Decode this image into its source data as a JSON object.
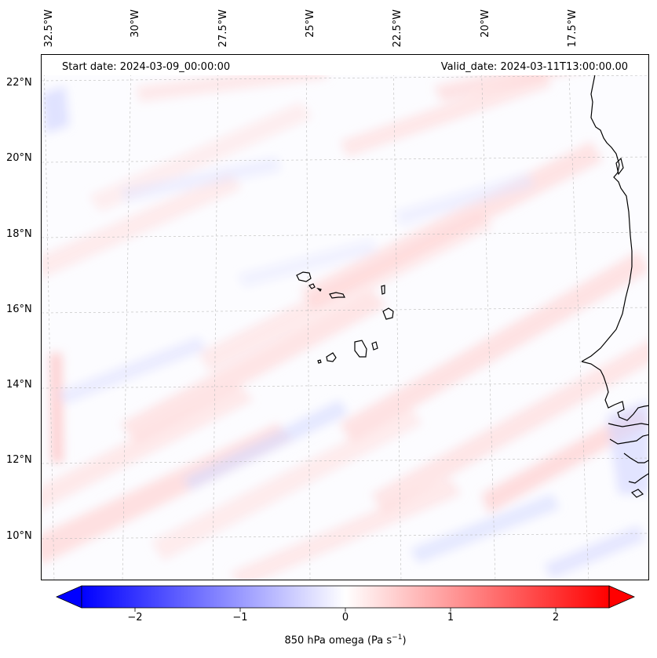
{
  "header": {
    "start_date": "Start date: 2024-03-09_00:00:00",
    "valid_date": "Valid_date: 2024-03-11T13:00:00.00"
  },
  "longitude_labels": [
    "32.5°W",
    "30°W",
    "27.5°W",
    "25°W",
    "22.5°W",
    "20°W",
    "17.5°W"
  ],
  "latitude_labels": [
    "22°N",
    "20°N",
    "18°N",
    "16°N",
    "14°N",
    "12°N",
    "10°N"
  ],
  "colorbar": {
    "title": "850 hPa omega (Pa s",
    "title_exp": "−1",
    "title_close": ")",
    "tick_labels": [
      "−2",
      "−1",
      "0",
      "1",
      "2"
    ],
    "colormap": "bwr",
    "min_color": "#0000ff",
    "mid_color": "#ffffff",
    "max_color": "#ff0000"
  },
  "colors": {
    "coastline": "#000000",
    "gridline": "#bbbbbb",
    "background": "#fcfcff"
  }
}
